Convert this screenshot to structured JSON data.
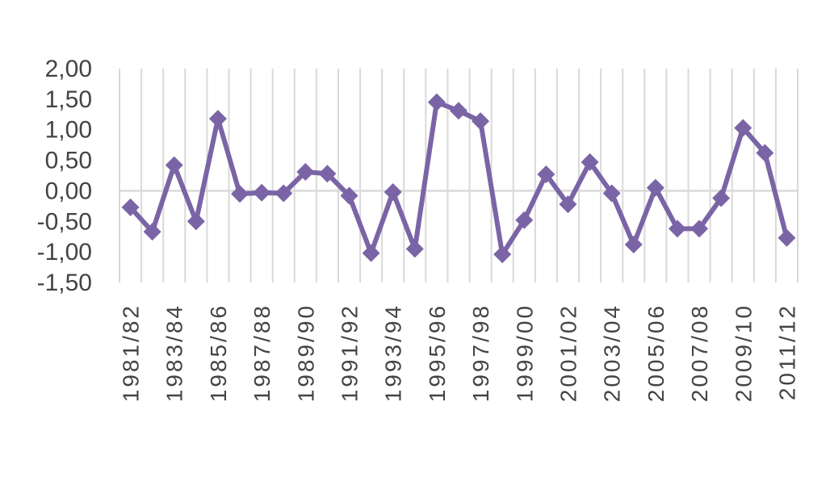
{
  "chart_data": {
    "type": "line",
    "title": "",
    "xlabel": "",
    "ylabel": "",
    "ylim": [
      -1.5,
      2.0
    ],
    "yticks": [
      "2,00",
      "1,50",
      "1,00",
      "0,50",
      "0,00",
      "-0,50",
      "-1,00",
      "-1,50"
    ],
    "ytick_values": [
      2.0,
      1.5,
      1.0,
      0.5,
      0.0,
      -0.5,
      -1.0,
      -1.5
    ],
    "grid": "vertical",
    "legend": "none",
    "colors": {
      "series": "#7B64A6",
      "grid": "#d9d9d9",
      "text": "#444444"
    },
    "marker": "diamond",
    "categories": [
      "1981/82",
      "1982/83",
      "1983/84",
      "1984/85",
      "1985/86",
      "1986/87",
      "1987/88",
      "1988/89",
      "1989/90",
      "1990/91",
      "1991/92",
      "1992/93",
      "1993/94",
      "1994/95",
      "1995/96",
      "1996/97",
      "1997/98",
      "1998/99",
      "1999/00",
      "2000/01",
      "2001/02",
      "2002/03",
      "2003/04",
      "2004/05",
      "2005/06",
      "2006/07",
      "2007/08",
      "2008/09",
      "2009/10",
      "2010/11",
      "2011/12"
    ],
    "shown_labels": [
      "1981/82",
      "1983/84",
      "1985/86",
      "1987/88",
      "1989/90",
      "1991/92",
      "1993/94",
      "1995/96",
      "1997/98",
      "1999/00",
      "2001/02",
      "2003/04",
      "2005/06",
      "2007/08",
      "2009/10",
      "2011/12"
    ],
    "series": [
      {
        "values": [
          -0.27,
          -0.67,
          0.42,
          -0.5,
          1.18,
          -0.05,
          -0.03,
          -0.04,
          0.31,
          0.28,
          -0.08,
          -1.02,
          -0.02,
          -0.95,
          1.45,
          1.31,
          1.14,
          -1.04,
          -0.48,
          0.27,
          -0.22,
          0.47,
          -0.04,
          -0.88,
          0.05,
          -0.62,
          -0.62,
          -0.12,
          1.03,
          0.62,
          -0.77
        ]
      }
    ]
  }
}
